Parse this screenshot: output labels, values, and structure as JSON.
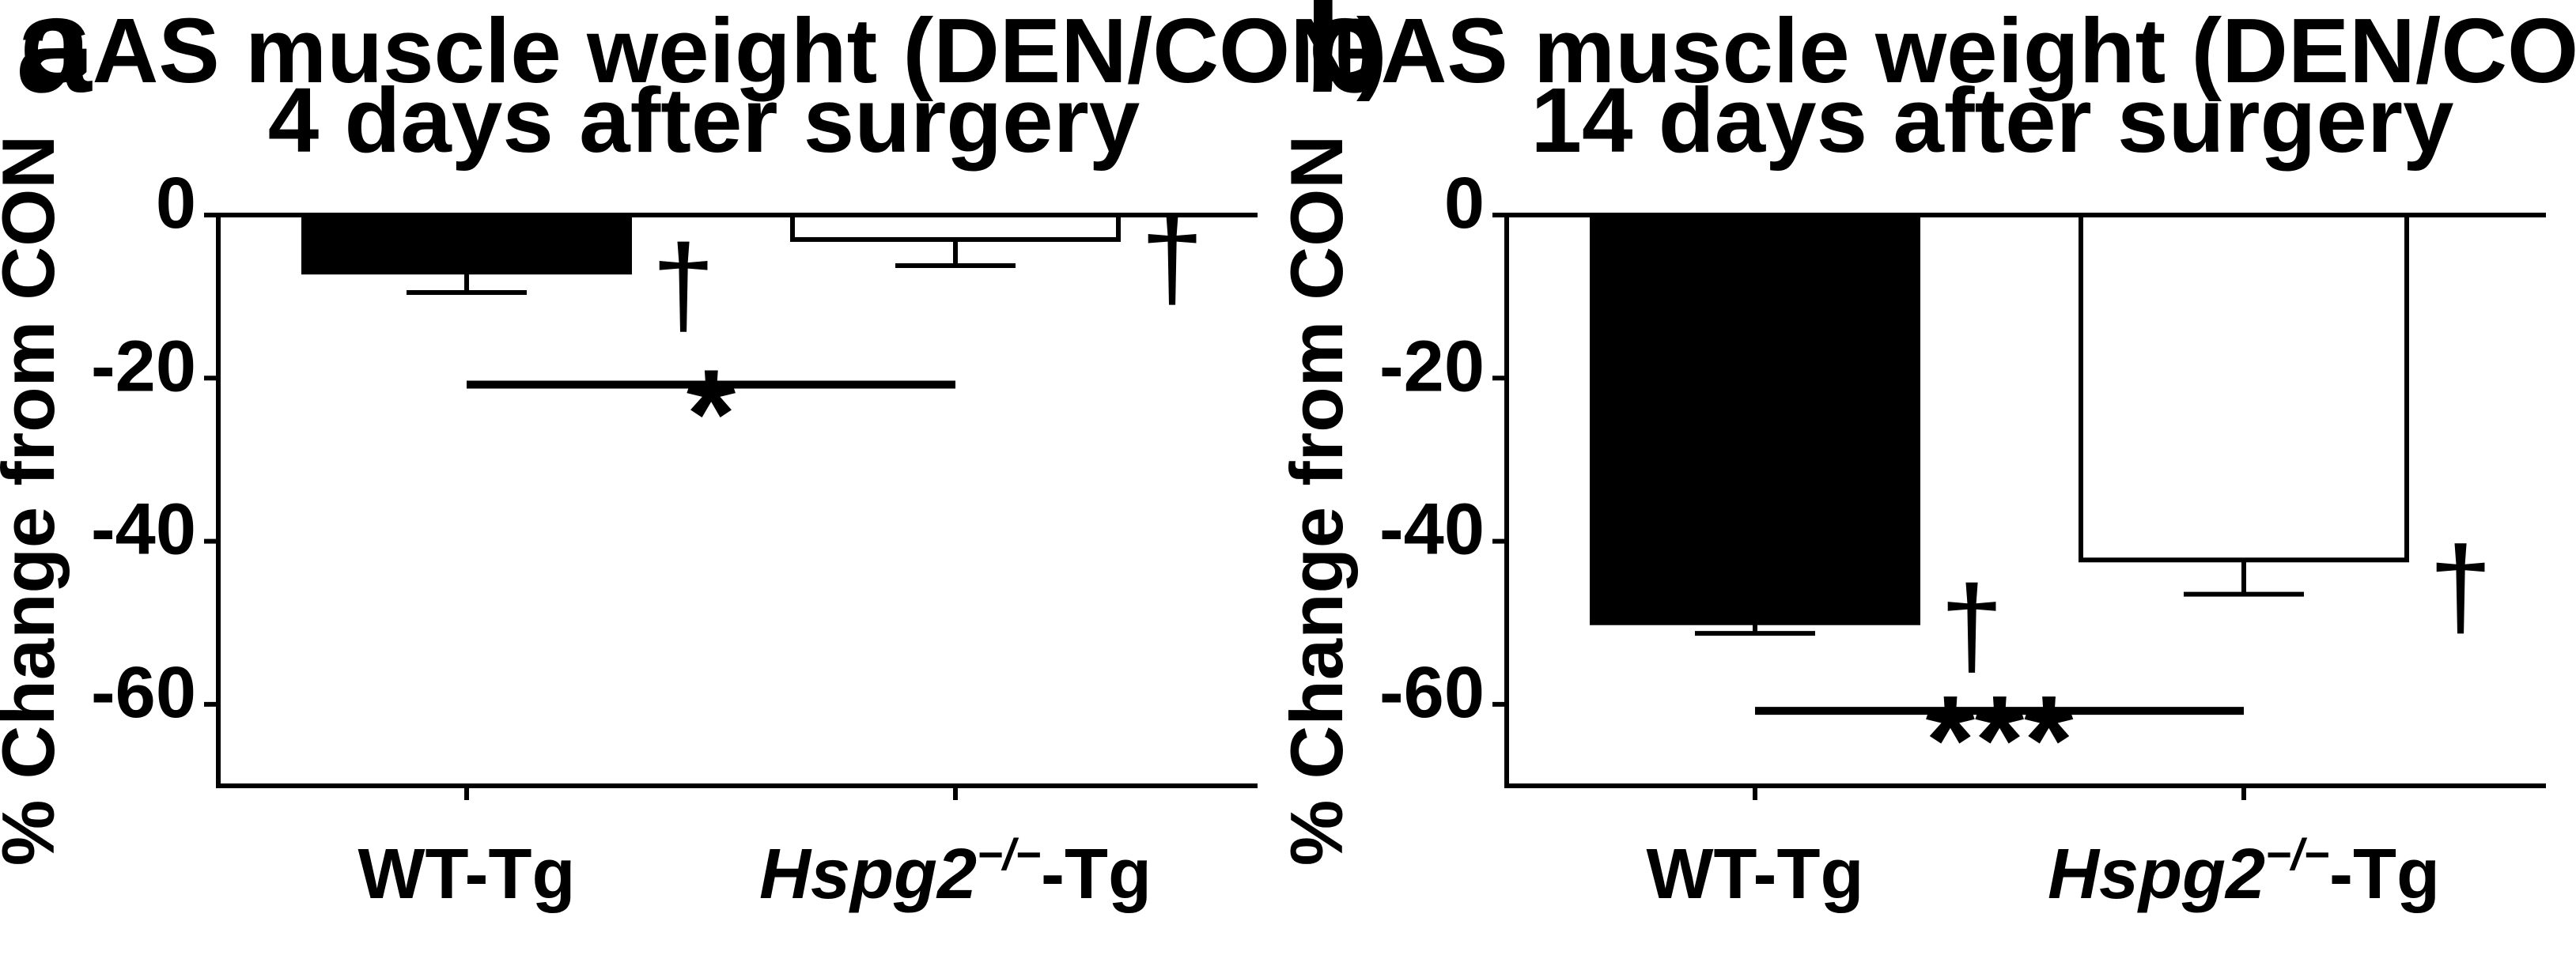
{
  "chart_data": [
    {
      "type": "bar",
      "panel_label": "a",
      "title_lines": [
        "GAS muscle weight (DEN/CON)",
        "4 days after surgery"
      ],
      "ylabel": "% Change from CON",
      "ylim": [
        -70,
        0
      ],
      "yticks": [
        {
          "value": 0,
          "label": "0"
        },
        {
          "value": -20,
          "label": "-20"
        },
        {
          "value": -40,
          "label": "-40"
        },
        {
          "value": -60,
          "label": "-60"
        }
      ],
      "categories": [
        {
          "main": "WT-Tg",
          "italic_part": "",
          "superscript": "",
          "suffix": ""
        },
        {
          "main": "",
          "italic_part": "Hspg2",
          "superscript": "−/−",
          "suffix": "-Tg"
        }
      ],
      "values": [
        -7,
        -3
      ],
      "errors": [
        2.5,
        3.2
      ],
      "bar_fill": [
        "#000000",
        "#ffffff"
      ],
      "bar_markers": [
        "†",
        "†"
      ],
      "significance": {
        "value": -20.8,
        "label": "*"
      }
    },
    {
      "type": "bar",
      "panel_label": "b",
      "title_lines": [
        "GAS muscle weight (DEN/CON)",
        "14 days after surgery"
      ],
      "ylabel": "% Change from CON",
      "ylim": [
        -70,
        0
      ],
      "yticks": [
        {
          "value": 0,
          "label": "0"
        },
        {
          "value": -20,
          "label": "-20"
        },
        {
          "value": -40,
          "label": "-40"
        },
        {
          "value": -60,
          "label": "-60"
        }
      ],
      "categories": [
        {
          "main": "WT-Tg",
          "italic_part": "",
          "superscript": "",
          "suffix": ""
        },
        {
          "main": "",
          "italic_part": "Hspg2",
          "superscript": "−/−",
          "suffix": "-Tg"
        }
      ],
      "values": [
        -50,
        -42.3
      ],
      "errors": [
        1.3,
        4.2
      ],
      "bar_fill": [
        "#000000",
        "#ffffff"
      ],
      "bar_markers": [
        "†",
        "†"
      ],
      "significance": {
        "value": -60.8,
        "label": "***"
      }
    }
  ]
}
